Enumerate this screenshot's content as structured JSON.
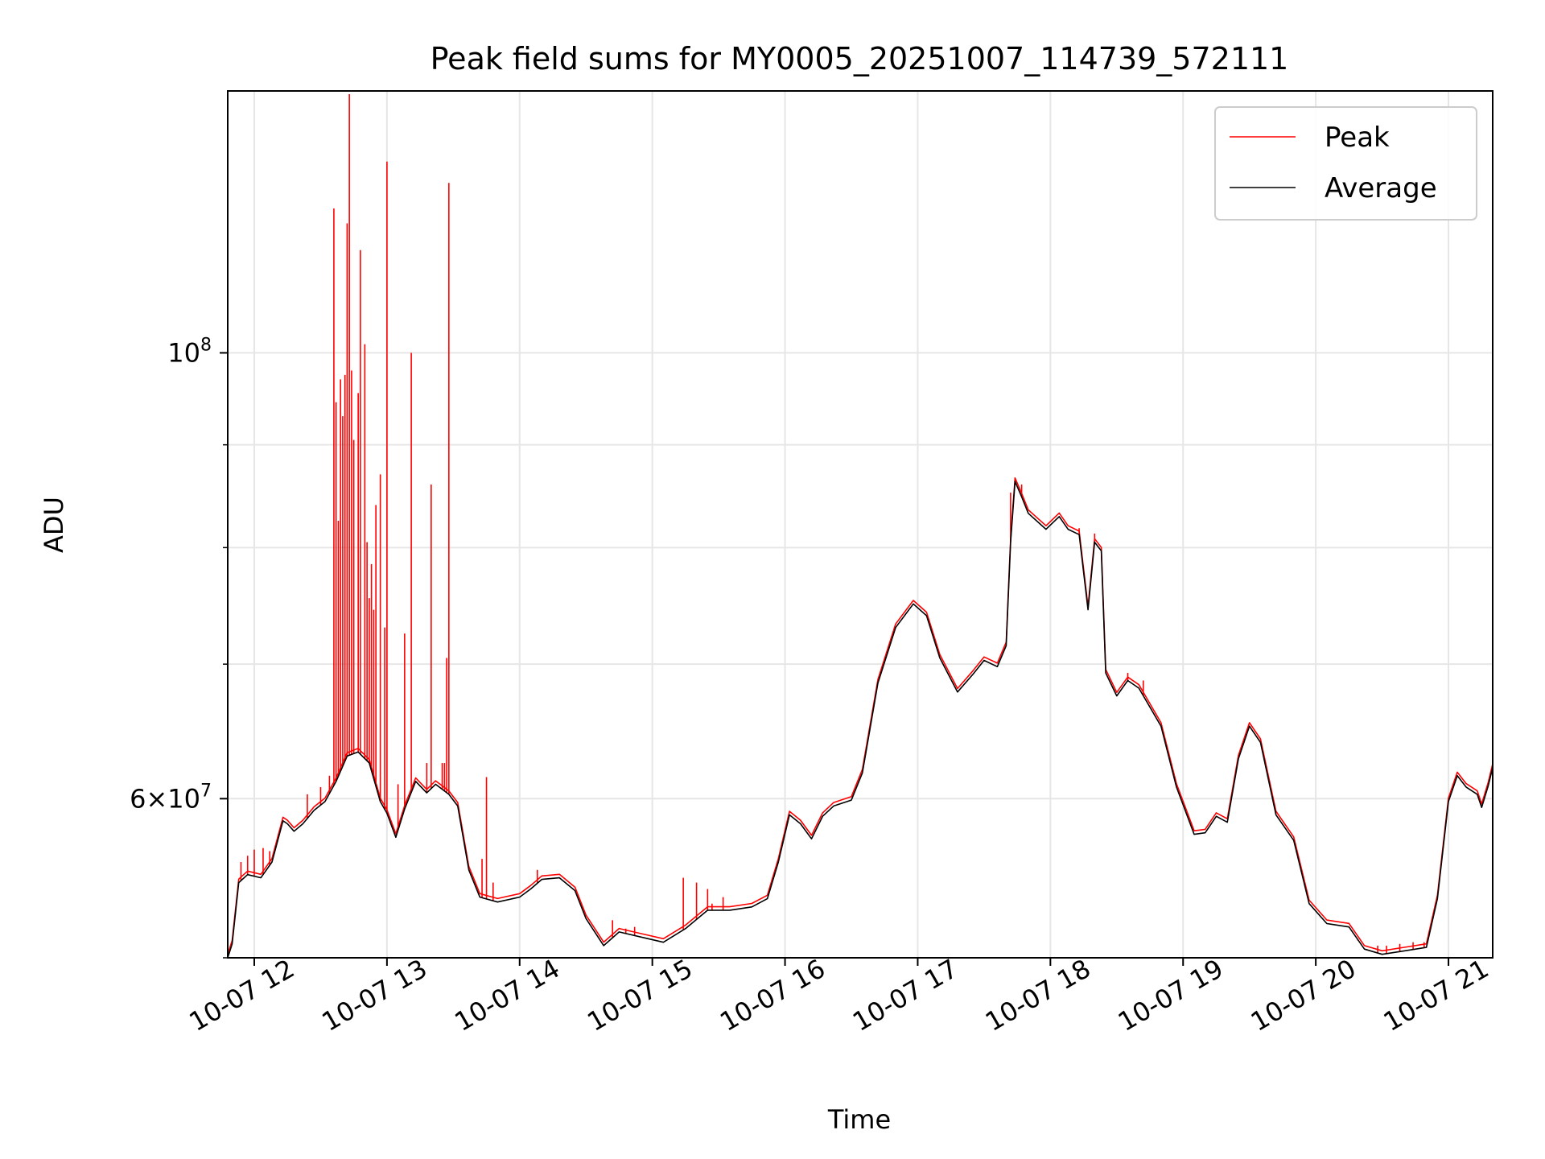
{
  "chart_data": {
    "type": "line",
    "title": "Peak field sums for MY0005_20251007_114739_572111",
    "xlabel": "Time",
    "ylabel": "ADU",
    "y_scale": "log",
    "ylim": [
      50000000,
      135000000
    ],
    "x_range": [
      "2025-10-07T11:48",
      "2025-10-07T21:20"
    ],
    "grid": true,
    "legend_position": "top-right",
    "x_ticks": [
      {
        "t": "2025-10-07T12:00",
        "label": "10-07 12"
      },
      {
        "t": "2025-10-07T13:00",
        "label": "10-07 13"
      },
      {
        "t": "2025-10-07T14:00",
        "label": "10-07 14"
      },
      {
        "t": "2025-10-07T15:00",
        "label": "10-07 15"
      },
      {
        "t": "2025-10-07T16:00",
        "label": "10-07 16"
      },
      {
        "t": "2025-10-07T17:00",
        "label": "10-07 17"
      },
      {
        "t": "2025-10-07T18:00",
        "label": "10-07 18"
      },
      {
        "t": "2025-10-07T19:00",
        "label": "10-07 19"
      },
      {
        "t": "2025-10-07T20:00",
        "label": "10-07 20"
      },
      {
        "t": "2025-10-07T21:00",
        "label": "10-07 21"
      }
    ],
    "y_major_ticks": [
      {
        "value": 60000000,
        "base": "6",
        "sup": "7"
      },
      {
        "value": 100000000,
        "base": "10",
        "sup": "8"
      }
    ],
    "y_minor_gridlines": [
      70000000,
      80000000,
      90000000
    ],
    "series": [
      {
        "name": "Average",
        "color": "#000000",
        "points": [
          [
            "2025-10-07T11:48",
            50000000
          ],
          [
            "2025-10-07T11:50",
            50800000
          ],
          [
            "2025-10-07T11:53",
            54500000
          ],
          [
            "2025-10-07T11:57",
            55000000
          ],
          [
            "2025-10-07T12:03",
            54800000
          ],
          [
            "2025-10-07T12:08",
            55800000
          ],
          [
            "2025-10-07T12:13",
            58500000
          ],
          [
            "2025-10-07T12:15",
            58300000
          ],
          [
            "2025-10-07T12:18",
            57800000
          ],
          [
            "2025-10-07T12:22",
            58300000
          ],
          [
            "2025-10-07T12:27",
            59200000
          ],
          [
            "2025-10-07T12:32",
            59800000
          ],
          [
            "2025-10-07T12:37",
            61200000
          ],
          [
            "2025-10-07T12:42",
            63000000
          ],
          [
            "2025-10-07T12:47",
            63300000
          ],
          [
            "2025-10-07T12:52",
            62500000
          ],
          [
            "2025-10-07T12:57",
            59800000
          ],
          [
            "2025-10-07T13:00",
            59000000
          ],
          [
            "2025-10-07T13:04",
            57400000
          ],
          [
            "2025-10-07T13:08",
            59300000
          ],
          [
            "2025-10-07T13:13",
            61200000
          ],
          [
            "2025-10-07T13:18",
            60400000
          ],
          [
            "2025-10-07T13:22",
            61000000
          ],
          [
            "2025-10-07T13:28",
            60300000
          ],
          [
            "2025-10-07T13:32",
            59500000
          ],
          [
            "2025-10-07T13:37",
            55300000
          ],
          [
            "2025-10-07T13:42",
            53600000
          ],
          [
            "2025-10-07T13:50",
            53300000
          ],
          [
            "2025-10-07T14:00",
            53600000
          ],
          [
            "2025-10-07T14:05",
            54100000
          ],
          [
            "2025-10-07T14:10",
            54700000
          ],
          [
            "2025-10-07T14:18",
            54800000
          ],
          [
            "2025-10-07T14:25",
            54000000
          ],
          [
            "2025-10-07T14:30",
            52300000
          ],
          [
            "2025-10-07T14:38",
            50700000
          ],
          [
            "2025-10-07T14:45",
            51500000
          ],
          [
            "2025-10-07T14:55",
            51200000
          ],
          [
            "2025-10-07T15:05",
            50900000
          ],
          [
            "2025-10-07T15:15",
            51700000
          ],
          [
            "2025-10-07T15:25",
            52800000
          ],
          [
            "2025-10-07T15:35",
            52800000
          ],
          [
            "2025-10-07T15:45",
            53000000
          ],
          [
            "2025-10-07T15:52",
            53500000
          ],
          [
            "2025-10-07T15:57",
            55800000
          ],
          [
            "2025-10-07T16:02",
            58900000
          ],
          [
            "2025-10-07T16:07",
            58300000
          ],
          [
            "2025-10-07T16:12",
            57300000
          ],
          [
            "2025-10-07T16:17",
            58800000
          ],
          [
            "2025-10-07T16:22",
            59500000
          ],
          [
            "2025-10-07T16:30",
            59900000
          ],
          [
            "2025-10-07T16:35",
            61800000
          ],
          [
            "2025-10-07T16:42",
            68500000
          ],
          [
            "2025-10-07T16:50",
            73000000
          ],
          [
            "2025-10-07T16:58",
            75000000
          ],
          [
            "2025-10-07T17:04",
            74000000
          ],
          [
            "2025-10-07T17:10",
            70500000
          ],
          [
            "2025-10-07T17:18",
            67800000
          ],
          [
            "2025-10-07T17:25",
            69200000
          ],
          [
            "2025-10-07T17:30",
            70300000
          ],
          [
            "2025-10-07T17:36",
            69800000
          ],
          [
            "2025-10-07T17:40",
            71500000
          ],
          [
            "2025-10-07T17:42",
            80500000
          ],
          [
            "2025-10-07T17:44",
            86300000
          ],
          [
            "2025-10-07T17:47",
            84800000
          ],
          [
            "2025-10-07T17:50",
            83200000
          ],
          [
            "2025-10-07T17:58",
            81700000
          ],
          [
            "2025-10-07T18:04",
            82900000
          ],
          [
            "2025-10-07T18:08",
            81700000
          ],
          [
            "2025-10-07T18:13",
            81200000
          ],
          [
            "2025-10-07T18:17",
            74500000
          ],
          [
            "2025-10-07T18:20",
            80500000
          ],
          [
            "2025-10-07T18:23",
            79700000
          ],
          [
            "2025-10-07T18:25",
            69300000
          ],
          [
            "2025-10-07T18:30",
            67500000
          ],
          [
            "2025-10-07T18:35",
            68700000
          ],
          [
            "2025-10-07T18:40",
            68100000
          ],
          [
            "2025-10-07T18:50",
            65200000
          ],
          [
            "2025-10-07T18:57",
            60800000
          ],
          [
            "2025-10-07T19:05",
            57600000
          ],
          [
            "2025-10-07T19:10",
            57700000
          ],
          [
            "2025-10-07T19:15",
            58800000
          ],
          [
            "2025-10-07T19:20",
            58400000
          ],
          [
            "2025-10-07T19:25",
            62800000
          ],
          [
            "2025-10-07T19:30",
            65200000
          ],
          [
            "2025-10-07T19:35",
            64000000
          ],
          [
            "2025-10-07T19:42",
            58900000
          ],
          [
            "2025-10-07T19:50",
            57200000
          ],
          [
            "2025-10-07T19:57",
            53200000
          ],
          [
            "2025-10-07T20:05",
            52000000
          ],
          [
            "2025-10-07T20:15",
            51800000
          ],
          [
            "2025-10-07T20:22",
            50500000
          ],
          [
            "2025-10-07T20:30",
            50200000
          ],
          [
            "2025-10-07T20:40",
            50400000
          ],
          [
            "2025-10-07T20:50",
            50600000
          ],
          [
            "2025-10-07T20:55",
            53500000
          ],
          [
            "2025-10-07T21:00",
            59800000
          ],
          [
            "2025-10-07T21:04",
            61600000
          ],
          [
            "2025-10-07T21:08",
            60800000
          ],
          [
            "2025-10-07T21:13",
            60300000
          ],
          [
            "2025-10-07T21:15",
            59400000
          ],
          [
            "2025-10-07T21:18",
            60900000
          ],
          [
            "2025-10-07T21:20",
            62200000
          ]
        ]
      },
      {
        "name": "Peak",
        "color": "#ff0000",
        "spikes": [
          [
            "2025-10-07T11:54",
            55800000
          ],
          [
            "2025-10-07T11:57",
            56200000
          ],
          [
            "2025-10-07T12:00",
            56600000
          ],
          [
            "2025-10-07T12:04",
            56700000
          ],
          [
            "2025-10-07T12:07",
            56500000
          ],
          [
            "2025-10-07T12:24",
            60300000
          ],
          [
            "2025-10-07T12:30",
            60800000
          ],
          [
            "2025-10-07T12:34",
            61600000
          ],
          [
            "2025-10-07T12:36",
            118000000
          ],
          [
            "2025-10-07T12:37",
            94500000
          ],
          [
            "2025-10-07T12:38",
            82500000
          ],
          [
            "2025-10-07T12:39",
            97000000
          ],
          [
            "2025-10-07T12:40",
            93000000
          ],
          [
            "2025-10-07T12:41",
            97500000
          ],
          [
            "2025-10-07T12:42",
            116000000
          ],
          [
            "2025-10-07T12:43",
            134500000
          ],
          [
            "2025-10-07T12:44",
            98000000
          ],
          [
            "2025-10-07T12:45",
            90500000
          ],
          [
            "2025-10-07T12:47",
            95500000
          ],
          [
            "2025-10-07T12:48",
            112500000
          ],
          [
            "2025-10-07T12:50",
            101000000
          ],
          [
            "2025-10-07T12:51",
            80500000
          ],
          [
            "2025-10-07T12:52",
            75500000
          ],
          [
            "2025-10-07T12:53",
            78500000
          ],
          [
            "2025-10-07T12:54",
            74500000
          ],
          [
            "2025-10-07T12:55",
            84000000
          ],
          [
            "2025-10-07T12:57",
            87000000
          ],
          [
            "2025-10-07T12:59",
            73000000
          ],
          [
            "2025-10-07T13:00",
            124500000
          ],
          [
            "2025-10-07T13:05",
            61000000
          ],
          [
            "2025-10-07T13:08",
            72500000
          ],
          [
            "2025-10-07T13:11",
            100000000
          ],
          [
            "2025-10-07T13:18",
            62500000
          ],
          [
            "2025-10-07T13:20",
            86000000
          ],
          [
            "2025-10-07T13:25",
            62500000
          ],
          [
            "2025-10-07T13:26",
            62500000
          ],
          [
            "2025-10-07T13:27",
            70500000
          ],
          [
            "2025-10-07T13:28",
            121500000
          ],
          [
            "2025-10-07T13:43",
            56000000
          ],
          [
            "2025-10-07T13:45",
            61500000
          ],
          [
            "2025-10-07T13:48",
            54500000
          ],
          [
            "2025-10-07T14:08",
            55300000
          ],
          [
            "2025-10-07T14:42",
            52200000
          ],
          [
            "2025-10-07T14:48",
            51700000
          ],
          [
            "2025-10-07T14:52",
            51800000
          ],
          [
            "2025-10-07T15:14",
            54800000
          ],
          [
            "2025-10-07T15:20",
            54500000
          ],
          [
            "2025-10-07T15:25",
            54100000
          ],
          [
            "2025-10-07T15:27",
            53200000
          ],
          [
            "2025-10-07T15:32",
            53600000
          ],
          [
            "2025-10-07T17:42",
            85200000
          ],
          [
            "2025-10-07T17:47",
            86000000
          ],
          [
            "2025-10-07T18:13",
            81800000
          ],
          [
            "2025-10-07T18:20",
            81300000
          ],
          [
            "2025-10-07T18:35",
            69300000
          ],
          [
            "2025-10-07T18:42",
            68700000
          ],
          [
            "2025-10-07T20:19",
            51000000
          ],
          [
            "2025-10-07T20:28",
            50700000
          ],
          [
            "2025-10-07T20:32",
            50700000
          ],
          [
            "2025-10-07T20:38",
            50800000
          ],
          [
            "2025-10-07T20:44",
            50900000
          ],
          [
            "2025-10-07T20:49",
            50900000
          ]
        ]
      }
    ]
  }
}
